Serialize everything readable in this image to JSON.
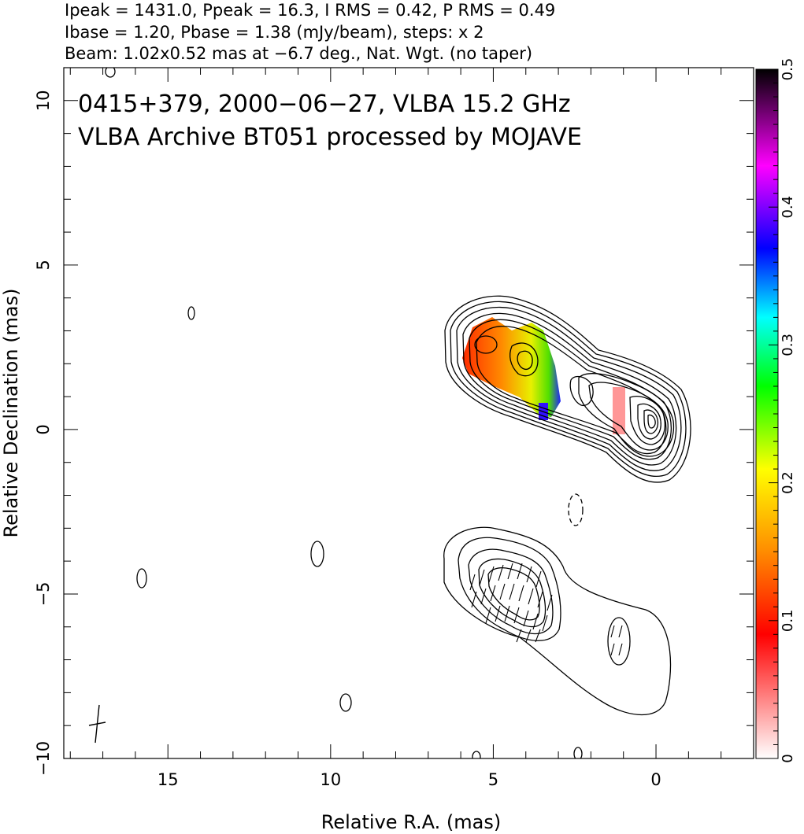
{
  "header": {
    "line1": "Ipeak = 1431.0, Ppeak = 16.3, I RMS = 0.42, P RMS = 0.49",
    "line2": "Ibase = 1.20, Pbase = 1.38 (mJy/beam), steps: x 2",
    "line3": "Beam: 1.02x0.52 mas at −6.7 deg., Nat. Wgt. (no taper)"
  },
  "chart_data": {
    "type": "contour",
    "title": "0415+379, 2000−06−27, VLBA 15.2 GHz",
    "subtitle": "VLBA Archive BT051 processed by MOJAVE",
    "xlabel": "Relative R.A. (mas)",
    "ylabel": "Relative Declination (mas)",
    "xlim": [
      18.2,
      -3.0
    ],
    "ylim": [
      -10,
      11
    ],
    "x_ticks": [
      15,
      10,
      5,
      0
    ],
    "y_ticks": [
      -10,
      -5,
      0,
      5,
      10
    ],
    "x_tick_labels": [
      "15",
      "10",
      "5",
      "0"
    ],
    "y_tick_labels": [
      "−10",
      "−5",
      "0",
      "5",
      "10"
    ],
    "colorbar": {
      "range": [
        0,
        0.5
      ],
      "ticks": [
        0,
        0.1,
        0.2,
        0.3,
        0.4,
        0.5
      ],
      "tick_labels": [
        "0",
        "0.1",
        "0.2",
        "0.3",
        "0.4",
        "0.5"
      ],
      "colors": [
        "#ffffff",
        "#ff0000",
        "#ff8c00",
        "#ffff00",
        "#00ff00",
        "#00ffff",
        "#0000ff",
        "#ff00ff",
        "#000000"
      ]
    },
    "total_intensity_map": {
      "center": [
        0,
        3.5
      ],
      "core": [
        0,
        0
      ],
      "components": [
        [
          3.9,
          1.9
        ],
        [
          5.4,
          2.6
        ],
        [
          1.5,
          0.6
        ]
      ]
    },
    "polarization_map": {
      "center": [
        0,
        -6.0
      ],
      "components": [
        [
          4.5,
          -5.0
        ],
        [
          1.1,
          -6.2
        ]
      ]
    }
  }
}
